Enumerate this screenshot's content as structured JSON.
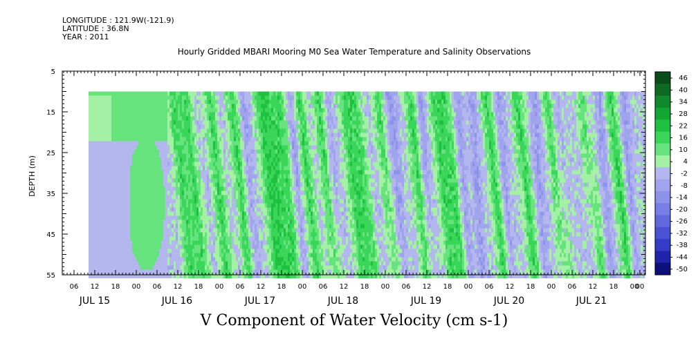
{
  "meta": {
    "longitude": "LONGITUDE : 121.9W(-121.9)",
    "latitude": "LATITUDE : 36.8N",
    "year": "YEAR : 2011"
  },
  "chart_data": {
    "type": "heatmap",
    "title": "Hourly Gridded MBARI Mooring M0 Sea Water Temperature and Salinity Observations",
    "xlabel": "V Component of Water Velocity (cm s-1)",
    "ylabel": "DEPTH (m)",
    "y_axis": {
      "range": [
        5,
        55
      ],
      "inverted": true,
      "ticks": [
        5,
        15,
        25,
        35,
        45,
        55
      ],
      "data_range": [
        10,
        55
      ]
    },
    "x_axis": {
      "hour_tick_labels": [
        "06",
        "12",
        "18",
        "00",
        "06",
        "12",
        "18",
        "00",
        "06",
        "12",
        "18",
        "00",
        "06",
        "12",
        "18",
        "00",
        "06",
        "12",
        "18",
        "00",
        "06",
        "12",
        "18",
        "00",
        "06",
        "12",
        "18",
        "00",
        "00"
      ],
      "day_labels": [
        "JUL 15",
        "JUL 16",
        "JUL 17",
        "JUL 18",
        "JUL 19",
        "JUL 20",
        "JUL 21"
      ]
    },
    "colorbar": {
      "levels": [
        "46",
        "40",
        "34",
        "28",
        "22",
        "16",
        "10",
        "4",
        "-2",
        "-8",
        "-14",
        "-20",
        "-26",
        "-32",
        "-38",
        "-44",
        "-50"
      ],
      "colors": {
        "v46": "#0a4d1a",
        "v40": "#0c6a22",
        "v34": "#0f8a2a",
        "v28": "#11a533",
        "v22": "#1ec040",
        "v16": "#3ad65a",
        "v10": "#66e37c",
        "v4": "#a4f0a4",
        "vm2": "#b4b6ee",
        "vm8": "#a0a4ec",
        "vm14": "#8c92ea",
        "vm20": "#777ee6",
        "vm26": "#6068e0",
        "vm32": "#4a52d6",
        "vm38": "#333cc6",
        "vm44": "#1f25aa",
        "vm50": "#0c0f7a"
      }
    },
    "grid": false
  }
}
